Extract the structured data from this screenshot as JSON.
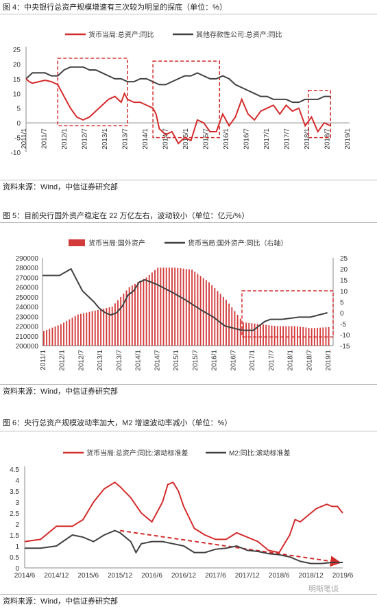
{
  "figures": [
    {
      "caption": "图 4：中央银行总资产规模增速有三次较为明显的探底（单位：%）",
      "source": "资料来源：Wind，中信证券研究部"
    },
    {
      "caption": "图 5：目前央行国外资产稳定在 22 万亿左右，波动较小（单位：亿元/%）",
      "source": "资料来源：Wind，中信证券研究部"
    },
    {
      "caption": "图 6：央行总资产规模波动率加大，M2 增速波动率减小（单位：%）",
      "source": "资料来源：Wind，中信证券研究部"
    }
  ],
  "watermark": "明晰笔谈",
  "colors": {
    "red": "#d42b2b",
    "dark": "#404040",
    "bar": "#d33a3a"
  },
  "chart_data": [
    {
      "type": "line",
      "xlabel": "",
      "ylabel": "",
      "ylim": [
        -10,
        25
      ],
      "yticks": [
        -10,
        -5,
        0,
        5,
        10,
        15,
        20,
        25
      ],
      "xticks": [
        "2011/1",
        "2011/7",
        "2012/1",
        "2012/7",
        "2013/1",
        "2013/7",
        "2014/1",
        "2014/7",
        "2015/1",
        "2015/7",
        "2016/1",
        "2016/7",
        "2017/1",
        "2017/7",
        "2018/1",
        "2018/7",
        "2019/1"
      ],
      "x_range": [
        0,
        102
      ],
      "legend": "top",
      "highlight_boxes_x": [
        [
          10,
          32
        ],
        [
          40,
          61
        ],
        [
          89,
          96
        ]
      ],
      "highlight_boxes_y": [
        [
          -1,
          22
        ],
        [
          -5,
          21
        ],
        [
          -5,
          11
        ]
      ],
      "series": [
        {
          "name": "货币当局:总资产:同比",
          "x": [
            0,
            1,
            2,
            4,
            6,
            8,
            10,
            12,
            14,
            16,
            18,
            20,
            22,
            24,
            26,
            28,
            30,
            31,
            32,
            34,
            36,
            38,
            40,
            41,
            42,
            44,
            46,
            48,
            50,
            52,
            54,
            56,
            58,
            60,
            62,
            64,
            66,
            68,
            70,
            72,
            74,
            76,
            78,
            80,
            82,
            84,
            86,
            88,
            90,
            92,
            94,
            96
          ],
          "values": [
            15,
            14,
            13.5,
            14,
            14.5,
            14,
            13,
            9,
            5,
            2,
            1,
            2,
            4,
            6,
            8,
            9,
            7,
            10,
            8,
            7,
            7,
            6,
            5,
            3,
            -2,
            -4,
            -3,
            -7,
            -5,
            -6,
            1,
            0,
            -3,
            -3,
            3,
            -1,
            2,
            8,
            3,
            1,
            4,
            5,
            6,
            3,
            6,
            4,
            5,
            -1,
            2,
            -3,
            0,
            -1
          ]
        },
        {
          "name": "其他存款性公司:总资产:同比",
          "x": [
            0,
            2,
            4,
            6,
            8,
            10,
            12,
            14,
            16,
            18,
            20,
            22,
            24,
            26,
            28,
            30,
            32,
            34,
            36,
            38,
            40,
            42,
            44,
            46,
            48,
            50,
            52,
            54,
            56,
            58,
            60,
            62,
            64,
            66,
            68,
            70,
            72,
            74,
            76,
            78,
            80,
            82,
            84,
            86,
            88,
            90,
            92,
            94,
            96
          ],
          "values": [
            15,
            17,
            17,
            17,
            16,
            16,
            18,
            19,
            19,
            19,
            18,
            18,
            17,
            16,
            15,
            15,
            14,
            14,
            15,
            15,
            14,
            13,
            13,
            14,
            15,
            16,
            16,
            17,
            16,
            15,
            15,
            16,
            15,
            13,
            12,
            11,
            10,
            9,
            9,
            8,
            8,
            8,
            7,
            7,
            8,
            8,
            8,
            9,
            9
          ]
        }
      ]
    },
    {
      "type": "bar",
      "xlabel": "",
      "ylabel": "",
      "ylim": [
        200000,
        290000
      ],
      "yticks": [
        200000,
        210000,
        220000,
        230000,
        240000,
        250000,
        260000,
        270000,
        280000,
        290000
      ],
      "y2lim": [
        -15,
        25
      ],
      "y2ticks": [
        -15,
        -10,
        -5,
        0,
        5,
        10,
        15,
        20,
        25
      ],
      "xticks": [
        "2011/1",
        "2012/1",
        "2012/7",
        "2013/1",
        "2013/7",
        "2014/1",
        "2014/7",
        "2015/1",
        "2015/7",
        "2016/1",
        "2016/7",
        "2017/1",
        "2017/7",
        "2018/1",
        "2018/7",
        "2019/1"
      ],
      "x_range": [
        0,
        102
      ],
      "legend": "top",
      "highlight_box_x": [
        70,
        102
      ],
      "highlight_box_y2": [
        -11,
        10
      ],
      "series": [
        {
          "name": "货币当局:国外资产",
          "x": [
            0,
            6,
            12,
            18,
            24,
            30,
            36,
            40,
            46,
            52,
            58,
            64,
            70,
            76,
            82,
            88,
            94,
            100
          ],
          "values": [
            215000,
            222000,
            232000,
            236000,
            240000,
            260000,
            270000,
            280000,
            280000,
            278000,
            265000,
            247000,
            224000,
            222000,
            220000,
            220000,
            218000,
            219000
          ]
        },
        {
          "name": "货币当局:国外资产:同比（右轴）",
          "x": [
            0,
            6,
            10,
            14,
            18,
            20,
            22,
            24,
            26,
            28,
            30,
            32,
            34,
            36,
            40,
            46,
            50,
            56,
            60,
            64,
            70,
            74,
            76,
            78,
            80,
            84,
            90,
            94,
            100
          ],
          "values": [
            17,
            17,
            20,
            10,
            5,
            2,
            0,
            -1,
            0,
            3,
            8,
            10,
            14,
            15,
            13,
            9,
            6,
            1,
            -2,
            -6,
            -8,
            -8,
            -6,
            -4,
            -3,
            -3,
            -2,
            -2,
            0
          ]
        }
      ]
    },
    {
      "type": "line",
      "xlabel": "",
      "ylabel": "",
      "ylim": [
        0,
        4.5
      ],
      "yticks": [
        0,
        0.5,
        1,
        1.5,
        2,
        2.5,
        3,
        3.5,
        4,
        4.5
      ],
      "xticks": [
        "2014/6",
        "2014/12",
        "2015/6",
        "2015/12",
        "2016/6",
        "2016/12",
        "2017/6",
        "2017/12",
        "2018/6",
        "2018/12",
        "2019/6"
      ],
      "x_range": [
        0,
        60
      ],
      "legend": "top",
      "trend_arrow": {
        "x": [
          18,
          60
        ],
        "y": [
          1.7,
          0.25
        ]
      },
      "series": [
        {
          "name": "货币当局:总资产:同比:滚动标准差",
          "x": [
            0,
            3,
            6,
            9,
            11,
            13,
            15,
            17,
            18,
            20,
            22,
            24,
            26,
            27,
            28,
            29,
            30,
            32,
            34,
            36,
            38,
            40,
            42,
            44,
            46,
            48,
            50,
            51,
            52,
            53,
            55,
            57,
            58,
            59,
            60
          ],
          "values": [
            1.2,
            1.3,
            1.9,
            1.9,
            2.2,
            3,
            3.6,
            3.9,
            3.7,
            3.2,
            2.5,
            2.1,
            3,
            3.8,
            3.9,
            3.5,
            2.8,
            1.8,
            1.5,
            1.3,
            1.3,
            1.6,
            1.4,
            1.2,
            0.8,
            0.7,
            1.5,
            2.2,
            2.1,
            2.3,
            2.7,
            2.9,
            2.8,
            2.8,
            2.5
          ]
        },
        {
          "name": "M2:同比:滚动标准差",
          "x": [
            0,
            3,
            6,
            9,
            11,
            13,
            15,
            17,
            18,
            20,
            21,
            22,
            24,
            26,
            28,
            30,
            32,
            34,
            36,
            38,
            40,
            42,
            44,
            46,
            48,
            50,
            52,
            54,
            56,
            58,
            60
          ],
          "values": [
            0.9,
            0.9,
            1,
            1.5,
            1.4,
            1.2,
            1.5,
            1.7,
            1.6,
            1.2,
            0.7,
            1.1,
            1.2,
            1.2,
            1.1,
            1,
            0.7,
            0.7,
            0.85,
            0.9,
            1,
            0.8,
            0.75,
            0.65,
            0.6,
            0.5,
            0.3,
            0.2,
            0.2,
            0.25,
            0.25
          ]
        }
      ]
    }
  ]
}
